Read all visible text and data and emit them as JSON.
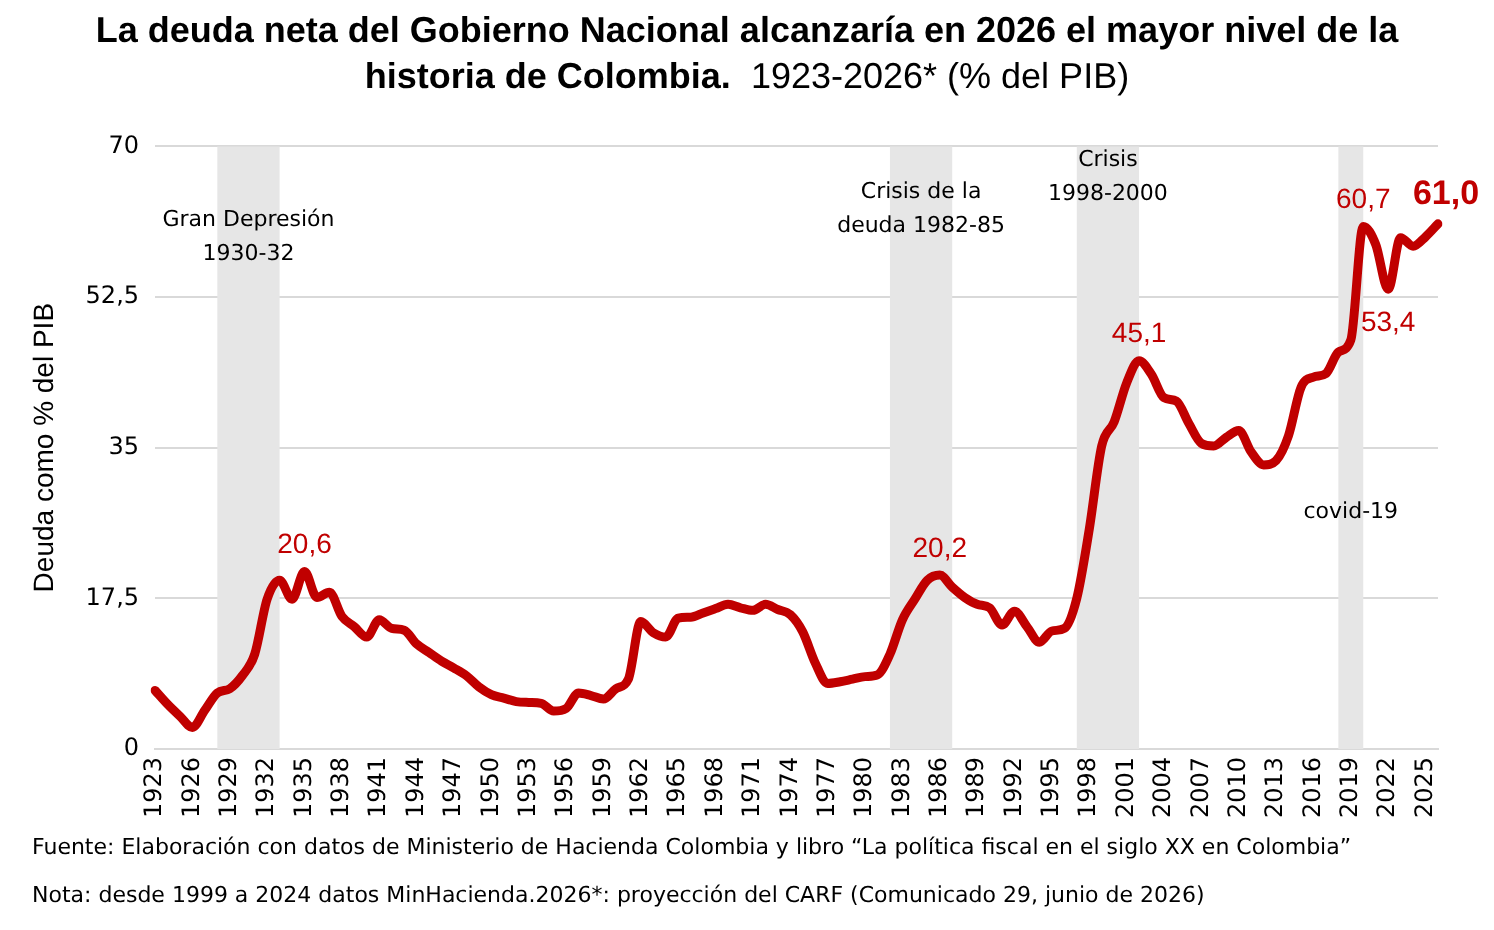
{
  "chart_data": {
    "type": "line",
    "title": "La deuda neta del Gobierno Nacional alcanzaría en 2026 el mayor nivel de la historia de Colombia.",
    "subtitle": "1923-2026* (% del PIB)",
    "ylabel": "Deuda como % del PIB",
    "categories": [
      "1923",
      null,
      null,
      "1926",
      null,
      null,
      "1929",
      null,
      null,
      "1932",
      null,
      null,
      "1935",
      null,
      null,
      "1938",
      null,
      null,
      "1941",
      null,
      null,
      "1944",
      null,
      null,
      "1947",
      null,
      null,
      "1950",
      null,
      null,
      "1953",
      null,
      null,
      "1956",
      null,
      null,
      "1959",
      null,
      null,
      "1962",
      null,
      null,
      "1965",
      null,
      null,
      "1968",
      null,
      null,
      "1971",
      null,
      null,
      "1974",
      null,
      null,
      "1977",
      null,
      null,
      "1980",
      null,
      null,
      "1983",
      null,
      null,
      "1986",
      null,
      null,
      "1989",
      null,
      null,
      "1992",
      null,
      null,
      "1995",
      null,
      null,
      "1998",
      null,
      null,
      "2001",
      null,
      null,
      "2004",
      null,
      null,
      "2007",
      null,
      null,
      "2010",
      null,
      null,
      "2013",
      null,
      null,
      "2016",
      null,
      null,
      "2019",
      null,
      null,
      "2022",
      null,
      null,
      "2025",
      null
    ],
    "series": [
      {
        "color": "#c00000",
        "values": [
          6.8,
          5.2,
          3.8,
          2.5,
          4.5,
          6.5,
          7.0,
          8.5,
          11,
          17.4,
          19.6,
          17.4,
          20.6,
          17.6,
          18.2,
          15.4,
          14.2,
          13,
          15,
          14,
          13.8,
          12.2,
          11.2,
          10.2,
          9.4,
          8.5,
          7.2,
          6.3,
          5.9,
          5.5,
          5.4,
          5.3,
          4.4,
          4.7,
          6.5,
          6.2,
          5.8,
          7,
          8.1,
          14.8,
          13.5,
          13,
          15.2,
          15.3,
          15.8,
          16.3,
          16.8,
          16.4,
          16.1,
          16.8,
          16.2,
          15.6,
          13.6,
          10,
          7.6,
          7.8,
          8.1,
          8.4,
          8.6,
          11,
          15,
          17.4,
          19.6,
          20.2,
          18.8,
          17.6,
          16.8,
          16.4,
          14.4,
          16,
          14.2,
          12.4,
          13.7,
          14,
          17.5,
          25.5,
          35.2,
          38,
          42.5,
          45.1,
          43.5,
          40.8,
          40.4,
          37.8,
          35.5,
          35.2,
          36.2,
          37,
          34.5,
          33,
          33.5,
          36.4,
          42,
          43.2,
          43.6,
          46.1,
          47.5,
          60.7,
          58.6,
          53.4,
          59.4,
          58.4,
          59.5,
          61.0
        ],
        "value_labels": [
          null,
          null,
          null,
          null,
          null,
          null,
          null,
          null,
          null,
          null,
          null,
          null,
          "20,6",
          null,
          null,
          null,
          null,
          null,
          null,
          null,
          null,
          null,
          null,
          null,
          null,
          null,
          null,
          null,
          null,
          null,
          null,
          null,
          null,
          null,
          null,
          null,
          null,
          null,
          null,
          null,
          null,
          null,
          null,
          null,
          null,
          null,
          null,
          null,
          null,
          null,
          null,
          null,
          null,
          null,
          null,
          null,
          null,
          null,
          null,
          null,
          null,
          null,
          null,
          "20,2",
          null,
          null,
          null,
          null,
          null,
          null,
          null,
          null,
          null,
          null,
          null,
          null,
          null,
          null,
          null,
          "45,1",
          null,
          null,
          null,
          null,
          null,
          null,
          null,
          null,
          null,
          null,
          null,
          null,
          null,
          null,
          null,
          null,
          null,
          "60,7",
          null,
          "53,4",
          null,
          null,
          null,
          "61,0"
        ]
      }
    ],
    "ylim": [
      0,
      70
    ],
    "yticks": [
      0,
      {
        "value": 17.5,
        "label": "17,5"
      },
      35,
      {
        "value": 52.5,
        "label": "52,5"
      },
      70
    ],
    "grid": "y",
    "legend": false,
    "marker": "none",
    "line_style": "solid",
    "bands": [
      {
        "axis": "x",
        "from": "1929",
        "to": "1932",
        "label": "Gran Depresión 1930-32",
        "color": "#e6e6e6"
      },
      {
        "axis": "x",
        "from": "1983",
        "to": "1986",
        "label": "Crisis de la deuda 1982-85",
        "color": "#e6e6e6"
      },
      {
        "axis": "x",
        "from": "1998",
        "to": "2001",
        "label": "Crisis 1998-2000",
        "color": "#e6e6e6"
      },
      {
        "axis": "x",
        "from": "2019",
        "to": "2019",
        "label": "covid-19",
        "color": "#e6e6e6"
      }
    ],
    "annotations": [
      "Fuente: Elaboración con datos de Ministerio de Hacienda Colombia y libro “La política fiscal en el siglo XX en Colombia”",
      "Nota: desde 1999 a 2024 datos MinHacienda.2026*: proyección del CARF (Comunicado 29, junio de 2026)"
    ]
  }
}
